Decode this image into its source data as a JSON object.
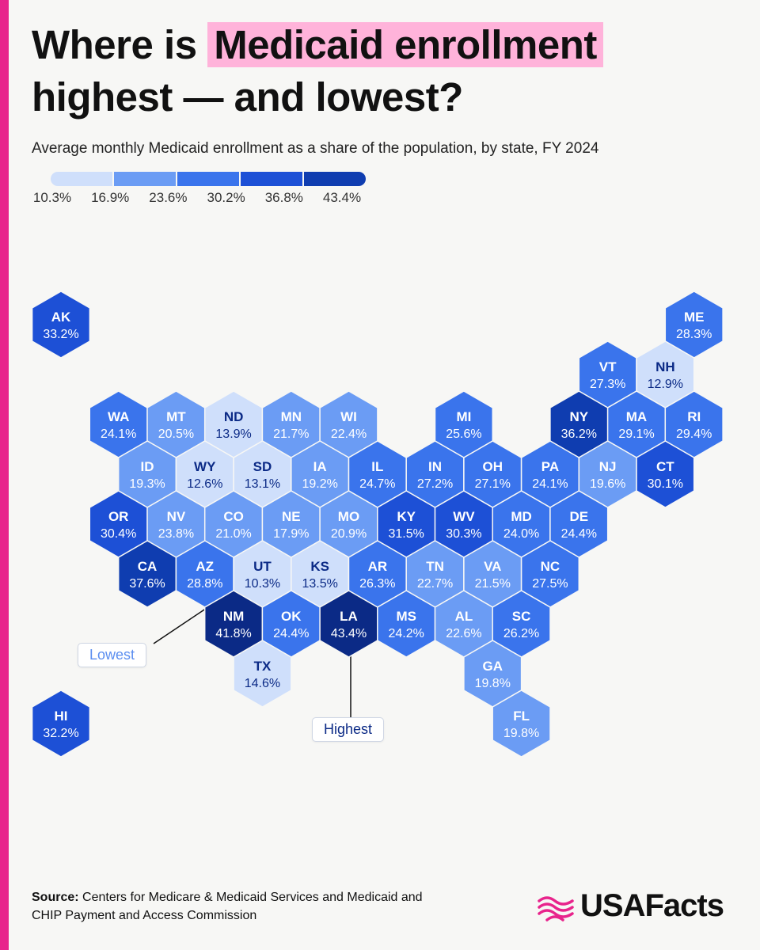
{
  "header": {
    "title_before": "Where is ",
    "title_highlight": "Medicaid enrollment",
    "title_after": " highest — and lowest?",
    "subtitle": "Average monthly Medicaid enrollment as a share of the population, by state, FY 2024"
  },
  "legend": {
    "ticks": [
      "10.3%",
      "16.9%",
      "23.6%",
      "30.2%",
      "36.8%",
      "43.4%"
    ],
    "colors": [
      "#cfdffb",
      "#6b9cf4",
      "#3a74ec",
      "#1d50d6",
      "#0f3db0",
      "#0b2a86"
    ]
  },
  "chart_data": {
    "type": "hexbin map",
    "scale_bins": [
      10.3,
      16.9,
      23.6,
      30.2,
      36.8,
      43.4
    ],
    "unit": "%",
    "states": [
      {
        "code": "AK",
        "value": 33.2,
        "label": "33.2%",
        "row": 0,
        "col": 0
      },
      {
        "code": "ME",
        "value": 28.3,
        "label": "28.3%",
        "row": 0,
        "col": 11
      },
      {
        "code": "VT",
        "value": 27.3,
        "label": "27.3%",
        "row": 1,
        "col": 9.5
      },
      {
        "code": "NH",
        "value": 12.9,
        "label": "12.9%",
        "row": 1,
        "col": 10.5
      },
      {
        "code": "WA",
        "value": 24.1,
        "label": "24.1%",
        "row": 2,
        "col": 1
      },
      {
        "code": "MT",
        "value": 20.5,
        "label": "20.5%",
        "row": 2,
        "col": 2
      },
      {
        "code": "ND",
        "value": 13.9,
        "label": "13.9%",
        "row": 2,
        "col": 3
      },
      {
        "code": "MN",
        "value": 21.7,
        "label": "21.7%",
        "row": 2,
        "col": 4
      },
      {
        "code": "WI",
        "value": 22.4,
        "label": "22.4%",
        "row": 2,
        "col": 5
      },
      {
        "code": "MI",
        "value": 25.6,
        "label": "25.6%",
        "row": 2,
        "col": 7
      },
      {
        "code": "NY",
        "value": 36.2,
        "label": "36.2%",
        "row": 2,
        "col": 9
      },
      {
        "code": "MA",
        "value": 29.1,
        "label": "29.1%",
        "row": 2,
        "col": 10
      },
      {
        "code": "RI",
        "value": 29.4,
        "label": "29.4%",
        "row": 2,
        "col": 11
      },
      {
        "code": "ID",
        "value": 19.3,
        "label": "19.3%",
        "row": 3,
        "col": 1.5
      },
      {
        "code": "WY",
        "value": 12.6,
        "label": "12.6%",
        "row": 3,
        "col": 2.5
      },
      {
        "code": "SD",
        "value": 13.1,
        "label": "13.1%",
        "row": 3,
        "col": 3.5
      },
      {
        "code": "IA",
        "value": 19.2,
        "label": "19.2%",
        "row": 3,
        "col": 4.5
      },
      {
        "code": "IL",
        "value": 24.7,
        "label": "24.7%",
        "row": 3,
        "col": 5.5
      },
      {
        "code": "IN",
        "value": 27.2,
        "label": "27.2%",
        "row": 3,
        "col": 6.5
      },
      {
        "code": "OH",
        "value": 27.1,
        "label": "27.1%",
        "row": 3,
        "col": 7.5
      },
      {
        "code": "PA",
        "value": 24.1,
        "label": "24.1%",
        "row": 3,
        "col": 8.5
      },
      {
        "code": "NJ",
        "value": 19.6,
        "label": "19.6%",
        "row": 3,
        "col": 9.5
      },
      {
        "code": "CT",
        "value": 30.1,
        "label": "30.1%",
        "row": 3,
        "col": 10.5
      },
      {
        "code": "OR",
        "value": 30.4,
        "label": "30.4%",
        "row": 4,
        "col": 1
      },
      {
        "code": "NV",
        "value": 23.8,
        "label": "23.8%",
        "row": 4,
        "col": 2
      },
      {
        "code": "CO",
        "value": 21.0,
        "label": "21.0%",
        "row": 4,
        "col": 3
      },
      {
        "code": "NE",
        "value": 17.9,
        "label": "17.9%",
        "row": 4,
        "col": 4
      },
      {
        "code": "MO",
        "value": 20.9,
        "label": "20.9%",
        "row": 4,
        "col": 5
      },
      {
        "code": "KY",
        "value": 31.5,
        "label": "31.5%",
        "row": 4,
        "col": 6
      },
      {
        "code": "WV",
        "value": 30.3,
        "label": "30.3%",
        "row": 4,
        "col": 7
      },
      {
        "code": "MD",
        "value": 24.0,
        "label": "24.0%",
        "row": 4,
        "col": 8
      },
      {
        "code": "DE",
        "value": 24.4,
        "label": "24.4%",
        "row": 4,
        "col": 9
      },
      {
        "code": "CA",
        "value": 37.6,
        "label": "37.6%",
        "row": 5,
        "col": 1.5
      },
      {
        "code": "AZ",
        "value": 28.8,
        "label": "28.8%",
        "row": 5,
        "col": 2.5
      },
      {
        "code": "UT",
        "value": 10.3,
        "label": "10.3%",
        "row": 5,
        "col": 3.5
      },
      {
        "code": "KS",
        "value": 13.5,
        "label": "13.5%",
        "row": 5,
        "col": 4.5
      },
      {
        "code": "AR",
        "value": 26.3,
        "label": "26.3%",
        "row": 5,
        "col": 5.5
      },
      {
        "code": "TN",
        "value": 22.7,
        "label": "22.7%",
        "row": 5,
        "col": 6.5
      },
      {
        "code": "VA",
        "value": 21.5,
        "label": "21.5%",
        "row": 5,
        "col": 7.5
      },
      {
        "code": "NC",
        "value": 27.5,
        "label": "27.5%",
        "row": 5,
        "col": 8.5
      },
      {
        "code": "NM",
        "value": 41.8,
        "label": "41.8%",
        "row": 6,
        "col": 3
      },
      {
        "code": "OK",
        "value": 24.4,
        "label": "24.4%",
        "row": 6,
        "col": 4
      },
      {
        "code": "LA",
        "value": 43.4,
        "label": "43.4%",
        "row": 6,
        "col": 5
      },
      {
        "code": "MS",
        "value": 24.2,
        "label": "24.2%",
        "row": 6,
        "col": 6
      },
      {
        "code": "AL",
        "value": 22.6,
        "label": "22.6%",
        "row": 6,
        "col": 7
      },
      {
        "code": "SC",
        "value": 26.2,
        "label": "26.2%",
        "row": 6,
        "col": 8
      },
      {
        "code": "TX",
        "value": 14.6,
        "label": "14.6%",
        "row": 7,
        "col": 3.5
      },
      {
        "code": "GA",
        "value": 19.8,
        "label": "19.8%",
        "row": 7,
        "col": 7.5
      },
      {
        "code": "HI",
        "value": 32.2,
        "label": "32.2%",
        "row": 8,
        "col": 0
      },
      {
        "code": "FL",
        "value": 19.8,
        "label": "19.8%",
        "row": 8,
        "col": 8
      }
    ],
    "annotations": [
      {
        "label": "Lowest",
        "state": "UT"
      },
      {
        "label": "Highest",
        "state": "LA"
      }
    ]
  },
  "callouts": {
    "lowest": "Lowest",
    "highest": "Highest"
  },
  "footer": {
    "source_label": "Source:",
    "source_text": " Centers for Medicare & Medicaid Services and Medicaid and CHIP Payment and Access Commission",
    "logo_text": "USAFacts"
  }
}
